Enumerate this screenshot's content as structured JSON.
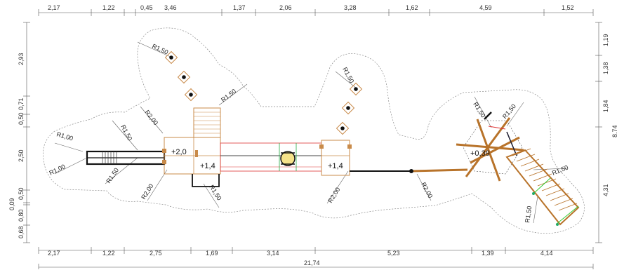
{
  "top_dims": [
    "2,17",
    "1,22",
    "0,45",
    "3,46",
    "1,37",
    "2,06",
    "3,28",
    "1,62",
    "4,59",
    "1,52"
  ],
  "bottom_dims": [
    "2,17",
    "1,22",
    "2,75",
    "1,69",
    "3,14",
    "5,23",
    "1,39",
    "4,14"
  ],
  "total_width": "21,74",
  "left_dims": [
    "2,93",
    "0,71",
    "0,50",
    "2,50",
    "0,50",
    "0,09",
    "0,80",
    "0,68"
  ],
  "right_dims": [
    "1,19",
    "1,38",
    "1,84",
    "4,31"
  ],
  "right_cut_label": "8,74",
  "radii": [
    "R1,50",
    "R1,50",
    "R1,50",
    "R2,00",
    "R1,50",
    "R1,00",
    "R1,00",
    "R1,50",
    "R2,00",
    "R1,50",
    "R2,00",
    "R2,00",
    "R1,50",
    "R1,50",
    "R1,50",
    "R1,50"
  ],
  "heights": [
    "+2,0",
    "+1,4",
    "+1,4",
    "+0,39"
  ]
}
